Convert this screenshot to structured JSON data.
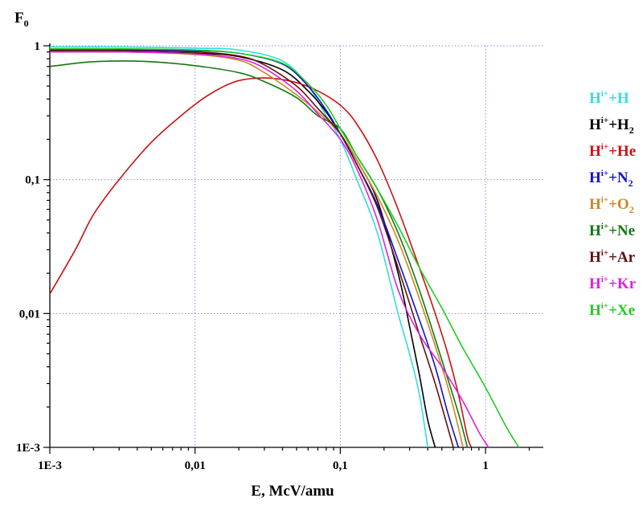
{
  "chart_data": {
    "type": "line",
    "x_scale": "log",
    "y_scale": "log",
    "xlim": [
      0.001,
      2.5
    ],
    "ylim": [
      0.001,
      1
    ],
    "grid": true,
    "legend_position": "right",
    "ylabel": {
      "main": "F",
      "sub": "0"
    },
    "xlabel": "E, McV/amu",
    "x_ticks": [
      {
        "value": 0.001,
        "label": "1E-3"
      },
      {
        "value": 0.01,
        "label": "0,01"
      },
      {
        "value": 0.1,
        "label": "0,1"
      },
      {
        "value": 1,
        "label": "1"
      }
    ],
    "y_ticks": [
      {
        "value": 0.001,
        "label": "1E-3"
      },
      {
        "value": 0.01,
        "label": "0,01"
      },
      {
        "value": 0.1,
        "label": "0,1"
      },
      {
        "value": 1,
        "label": "1"
      }
    ],
    "series": [
      {
        "id": "H",
        "base": "H",
        "sup": "i+",
        "target": "+H",
        "sub": "",
        "color": "#33dddd",
        "points": [
          [
            0.001,
            0.98
          ],
          [
            0.003,
            0.98
          ],
          [
            0.01,
            0.96
          ],
          [
            0.02,
            0.93
          ],
          [
            0.04,
            0.77
          ],
          [
            0.06,
            0.5
          ],
          [
            0.08,
            0.3
          ],
          [
            0.1,
            0.2
          ],
          [
            0.13,
            0.1
          ],
          [
            0.18,
            0.04
          ],
          [
            0.25,
            0.01
          ],
          [
            0.3,
            0.005
          ],
          [
            0.35,
            0.0025
          ],
          [
            0.4,
            0.001
          ]
        ]
      },
      {
        "id": "H2",
        "base": "H",
        "sup": "i+",
        "target": "+H",
        "sub": "2",
        "color": "#000000",
        "points": [
          [
            0.001,
            0.9
          ],
          [
            0.003,
            0.9
          ],
          [
            0.01,
            0.88
          ],
          [
            0.02,
            0.83
          ],
          [
            0.04,
            0.66
          ],
          [
            0.06,
            0.46
          ],
          [
            0.08,
            0.32
          ],
          [
            0.1,
            0.22
          ],
          [
            0.13,
            0.14
          ],
          [
            0.18,
            0.07
          ],
          [
            0.25,
            0.02
          ],
          [
            0.3,
            0.008
          ],
          [
            0.35,
            0.0035
          ],
          [
            0.4,
            0.0016
          ],
          [
            0.45,
            0.001
          ]
        ]
      },
      {
        "id": "He",
        "base": "H",
        "sup": "i+",
        "target": "+He",
        "sub": "",
        "color": "#cc1111",
        "points": [
          [
            0.001,
            0.014
          ],
          [
            0.0015,
            0.03
          ],
          [
            0.002,
            0.055
          ],
          [
            0.003,
            0.1
          ],
          [
            0.005,
            0.19
          ],
          [
            0.008,
            0.3
          ],
          [
            0.012,
            0.42
          ],
          [
            0.018,
            0.53
          ],
          [
            0.025,
            0.57
          ],
          [
            0.035,
            0.57
          ],
          [
            0.05,
            0.53
          ],
          [
            0.07,
            0.46
          ],
          [
            0.1,
            0.36
          ],
          [
            0.13,
            0.26
          ],
          [
            0.18,
            0.14
          ],
          [
            0.25,
            0.06
          ],
          [
            0.35,
            0.022
          ],
          [
            0.45,
            0.01
          ],
          [
            0.55,
            0.005
          ],
          [
            0.65,
            0.0025
          ],
          [
            0.75,
            0.0012
          ],
          [
            0.8,
            0.001
          ]
        ]
      },
      {
        "id": "N2",
        "base": "H",
        "sup": "i+",
        "target": "+N",
        "sub": "2",
        "color": "#1111cc",
        "points": [
          [
            0.001,
            0.93
          ],
          [
            0.003,
            0.93
          ],
          [
            0.01,
            0.92
          ],
          [
            0.02,
            0.88
          ],
          [
            0.04,
            0.73
          ],
          [
            0.06,
            0.5
          ],
          [
            0.08,
            0.33
          ],
          [
            0.1,
            0.22
          ],
          [
            0.13,
            0.13
          ],
          [
            0.18,
            0.065
          ],
          [
            0.25,
            0.025
          ],
          [
            0.35,
            0.009
          ],
          [
            0.45,
            0.004
          ],
          [
            0.55,
            0.0018
          ],
          [
            0.65,
            0.001
          ]
        ]
      },
      {
        "id": "O2",
        "base": "H",
        "sup": "i+",
        "target": "+O",
        "sub": "2",
        "color": "#cc8822",
        "points": [
          [
            0.001,
            0.9
          ],
          [
            0.003,
            0.9
          ],
          [
            0.01,
            0.86
          ],
          [
            0.02,
            0.78
          ],
          [
            0.03,
            0.63
          ],
          [
            0.05,
            0.43
          ],
          [
            0.07,
            0.32
          ],
          [
            0.1,
            0.22
          ],
          [
            0.13,
            0.14
          ],
          [
            0.18,
            0.075
          ],
          [
            0.25,
            0.035
          ],
          [
            0.35,
            0.013
          ],
          [
            0.5,
            0.004
          ],
          [
            0.6,
            0.002
          ],
          [
            0.7,
            0.001
          ]
        ]
      },
      {
        "id": "Ne",
        "base": "H",
        "sup": "i+",
        "target": "+Ne",
        "sub": "",
        "color": "#117711",
        "points": [
          [
            0.001,
            0.7
          ],
          [
            0.0015,
            0.74
          ],
          [
            0.002,
            0.76
          ],
          [
            0.003,
            0.77
          ],
          [
            0.005,
            0.76
          ],
          [
            0.01,
            0.71
          ],
          [
            0.02,
            0.63
          ],
          [
            0.03,
            0.54
          ],
          [
            0.05,
            0.41
          ],
          [
            0.07,
            0.3
          ],
          [
            0.1,
            0.24
          ],
          [
            0.13,
            0.15
          ],
          [
            0.18,
            0.085
          ],
          [
            0.25,
            0.04
          ],
          [
            0.35,
            0.015
          ],
          [
            0.5,
            0.0045
          ],
          [
            0.65,
            0.0018
          ],
          [
            0.75,
            0.001
          ]
        ]
      },
      {
        "id": "Ar",
        "base": "H",
        "sup": "i+",
        "target": "+Ar",
        "sub": "",
        "color": "#661111",
        "points": [
          [
            0.001,
            0.92
          ],
          [
            0.003,
            0.92
          ],
          [
            0.01,
            0.9
          ],
          [
            0.02,
            0.84
          ],
          [
            0.03,
            0.72
          ],
          [
            0.05,
            0.5
          ],
          [
            0.07,
            0.34
          ],
          [
            0.1,
            0.22
          ],
          [
            0.13,
            0.13
          ],
          [
            0.18,
            0.062
          ],
          [
            0.25,
            0.022
          ],
          [
            0.35,
            0.007
          ],
          [
            0.45,
            0.003
          ],
          [
            0.55,
            0.0014
          ],
          [
            0.6,
            0.001
          ]
        ]
      },
      {
        "id": "Kr",
        "base": "H",
        "sup": "i+",
        "target": "+Kr",
        "sub": "",
        "color": "#dd22dd",
        "points": [
          [
            0.001,
            0.9
          ],
          [
            0.003,
            0.9
          ],
          [
            0.01,
            0.87
          ],
          [
            0.02,
            0.8
          ],
          [
            0.03,
            0.68
          ],
          [
            0.05,
            0.46
          ],
          [
            0.07,
            0.31
          ],
          [
            0.1,
            0.2
          ],
          [
            0.13,
            0.12
          ],
          [
            0.18,
            0.05
          ],
          [
            0.25,
            0.015
          ],
          [
            0.35,
            0.007
          ],
          [
            0.5,
            0.004
          ],
          [
            0.7,
            0.0022
          ],
          [
            0.9,
            0.0013
          ],
          [
            1.05,
            0.001
          ]
        ]
      },
      {
        "id": "Xe",
        "base": "H",
        "sup": "i+",
        "target": "+Xe",
        "sub": "",
        "color": "#22cc22",
        "points": [
          [
            0.001,
            0.95
          ],
          [
            0.003,
            0.95
          ],
          [
            0.01,
            0.93
          ],
          [
            0.02,
            0.88
          ],
          [
            0.04,
            0.74
          ],
          [
            0.06,
            0.52
          ],
          [
            0.08,
            0.36
          ],
          [
            0.1,
            0.24
          ],
          [
            0.13,
            0.15
          ],
          [
            0.18,
            0.085
          ],
          [
            0.25,
            0.045
          ],
          [
            0.35,
            0.022
          ],
          [
            0.5,
            0.011
          ],
          [
            0.7,
            0.0055
          ],
          [
            1.0,
            0.0028
          ],
          [
            1.4,
            0.0014
          ],
          [
            1.7,
            0.001
          ]
        ]
      }
    ]
  }
}
